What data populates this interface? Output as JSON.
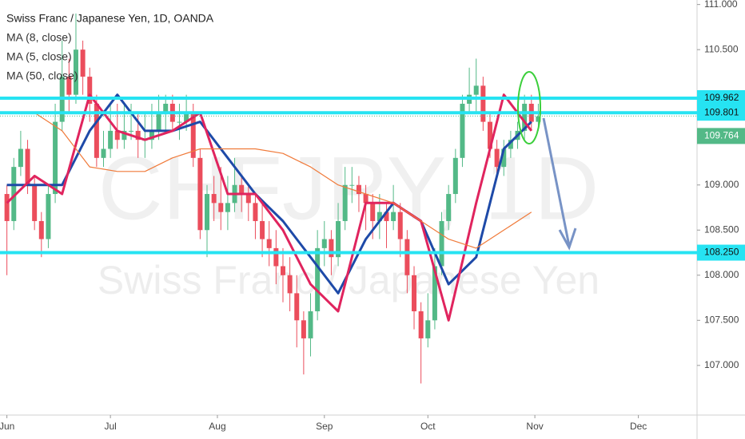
{
  "chart_data": {
    "type": "candlestick",
    "title": "Swiss Franc / Japanese Yen, 1D, OANDA",
    "watermark": "CHFJPY, 1D",
    "watermark_subtitle": "Swiss Franc / Japanese Yen",
    "up_color": "#53b987",
    "down_color": "#eb4d5c",
    "x": [
      0,
      2,
      4,
      6,
      8,
      10,
      12,
      14,
      16,
      18,
      20,
      22,
      24,
      26,
      28,
      30,
      32,
      34,
      36,
      38,
      40,
      42,
      44,
      46,
      48,
      50,
      52,
      54,
      56,
      58,
      60,
      62,
      64,
      66,
      68,
      70,
      72,
      74,
      76,
      78,
      80,
      82,
      84,
      86,
      88,
      90,
      92,
      94,
      96,
      98,
      100,
      102,
      104,
      106,
      108,
      110,
      112,
      114,
      116,
      118,
      120,
      122,
      124,
      126,
      128,
      130,
      132,
      134,
      136,
      138,
      140,
      142,
      144,
      146,
      148,
      150,
      152,
      154
    ],
    "candles": [
      [
        108.9,
        109.0,
        108.0,
        108.6
      ],
      [
        108.6,
        109.3,
        108.5,
        109.2
      ],
      [
        109.2,
        109.6,
        109.1,
        109.4
      ],
      [
        109.4,
        109.5,
        108.9,
        109.0
      ],
      [
        109.0,
        109.1,
        108.5,
        108.6
      ],
      [
        108.6,
        108.7,
        108.2,
        108.4
      ],
      [
        108.4,
        109.0,
        108.3,
        108.9
      ],
      [
        108.9,
        109.9,
        108.8,
        109.7
      ],
      [
        109.7,
        110.6,
        109.6,
        110.2
      ],
      [
        110.2,
        110.4,
        109.8,
        110.0
      ],
      [
        110.0,
        110.9,
        109.9,
        110.5
      ],
      [
        110.5,
        110.6,
        110.0,
        110.2
      ],
      [
        110.2,
        110.3,
        109.7,
        109.9
      ],
      [
        109.9,
        110.0,
        109.2,
        109.3
      ],
      [
        109.3,
        109.6,
        109.2,
        109.4
      ],
      [
        109.4,
        109.9,
        109.3,
        109.6
      ],
      [
        109.6,
        109.9,
        109.4,
        109.5
      ],
      [
        109.5,
        109.9,
        109.4,
        109.6
      ],
      [
        109.6,
        109.9,
        109.5,
        109.6
      ],
      [
        109.6,
        109.8,
        109.3,
        109.5
      ],
      [
        109.5,
        109.8,
        109.3,
        109.5
      ],
      [
        109.5,
        109.9,
        109.4,
        109.6
      ],
      [
        109.6,
        110.0,
        109.5,
        109.8
      ],
      [
        109.8,
        110.0,
        109.6,
        109.9
      ],
      [
        109.9,
        110.0,
        109.6,
        109.7
      ],
      [
        109.7,
        109.9,
        109.5,
        109.7
      ],
      [
        109.7,
        110.0,
        109.6,
        109.8
      ],
      [
        109.8,
        109.9,
        109.2,
        109.3
      ],
      [
        109.3,
        109.4,
        108.4,
        108.5
      ],
      [
        108.5,
        109.0,
        108.2,
        108.9
      ],
      [
        108.9,
        109.1,
        108.6,
        108.8
      ],
      [
        108.8,
        109.2,
        108.5,
        108.7
      ],
      [
        108.7,
        109.1,
        108.5,
        108.8
      ],
      [
        108.8,
        109.3,
        108.7,
        109.0
      ],
      [
        109.0,
        109.1,
        108.7,
        108.9
      ],
      [
        108.9,
        109.0,
        108.6,
        108.8
      ],
      [
        108.8,
        108.9,
        108.4,
        108.6
      ],
      [
        108.6,
        108.8,
        108.2,
        108.4
      ],
      [
        108.4,
        108.6,
        108.1,
        108.3
      ],
      [
        108.3,
        108.5,
        107.9,
        108.1
      ],
      [
        108.1,
        108.3,
        107.7,
        108.0
      ],
      [
        108.0,
        108.2,
        107.6,
        107.8
      ],
      [
        107.8,
        108.0,
        107.2,
        107.5
      ],
      [
        107.5,
        107.6,
        106.9,
        107.3
      ],
      [
        107.3,
        107.8,
        107.1,
        107.6
      ],
      [
        107.6,
        108.5,
        107.5,
        108.3
      ],
      [
        108.3,
        108.6,
        108.1,
        108.4
      ],
      [
        108.4,
        108.5,
        108.0,
        108.2
      ],
      [
        108.2,
        108.8,
        108.1,
        108.6
      ],
      [
        108.6,
        109.2,
        108.5,
        109.0
      ],
      [
        109.0,
        109.2,
        108.8,
        109.0
      ],
      [
        109.0,
        109.1,
        108.7,
        108.9
      ],
      [
        108.9,
        109.0,
        108.5,
        108.8
      ],
      [
        108.8,
        108.9,
        108.4,
        108.6
      ],
      [
        108.6,
        108.9,
        108.4,
        108.7
      ],
      [
        108.7,
        108.8,
        108.3,
        108.6
      ],
      [
        108.6,
        109.0,
        108.5,
        108.7
      ],
      [
        108.7,
        108.8,
        108.2,
        108.4
      ],
      [
        108.4,
        108.5,
        107.8,
        108.0
      ],
      [
        108.0,
        108.1,
        107.4,
        107.6
      ],
      [
        107.6,
        107.7,
        106.8,
        107.3
      ],
      [
        107.3,
        107.8,
        107.2,
        107.5
      ],
      [
        107.5,
        108.3,
        107.4,
        108.1
      ],
      [
        108.1,
        108.7,
        108.0,
        108.6
      ],
      [
        108.6,
        109.0,
        108.5,
        108.9
      ],
      [
        108.9,
        109.4,
        108.8,
        109.3
      ],
      [
        109.3,
        110.0,
        109.2,
        109.9
      ],
      [
        109.9,
        110.3,
        109.8,
        110.0
      ],
      [
        110.0,
        110.4,
        109.8,
        110.1
      ],
      [
        110.1,
        110.2,
        109.6,
        109.7
      ],
      [
        109.7,
        109.8,
        109.3,
        109.4
      ],
      [
        109.4,
        109.5,
        109.1,
        109.2
      ],
      [
        109.2,
        109.5,
        109.1,
        109.4
      ],
      [
        109.4,
        109.6,
        109.3,
        109.5
      ],
      [
        109.5,
        109.7,
        109.4,
        109.6
      ],
      [
        109.6,
        110.0,
        109.5,
        109.9
      ],
      [
        109.9,
        110.0,
        109.6,
        109.7
      ],
      [
        109.7,
        109.9,
        109.6,
        109.76
      ]
    ],
    "series": [
      {
        "name": "MA (8, close)",
        "color": "#1e4aa8",
        "x": [
          0,
          8,
          16,
          24,
          32,
          40,
          48,
          56,
          64,
          72,
          80,
          88,
          96,
          104,
          112,
          120,
          128,
          136,
          144,
          152
        ],
        "values": [
          109.0,
          109.0,
          109.0,
          109.6,
          110.0,
          109.6,
          109.6,
          109.7,
          109.3,
          108.9,
          108.6,
          108.2,
          107.8,
          108.4,
          108.8,
          108.6,
          107.9,
          108.2,
          109.4,
          109.7
        ]
      },
      {
        "name": "MA (5, close)",
        "color": "#e0245e",
        "x": [
          0,
          8,
          16,
          24,
          32,
          40,
          48,
          56,
          64,
          72,
          80,
          88,
          96,
          104,
          112,
          120,
          128,
          136,
          144,
          152
        ],
        "values": [
          108.8,
          109.1,
          108.9,
          110.0,
          109.6,
          109.5,
          109.6,
          109.8,
          108.9,
          108.9,
          108.5,
          107.9,
          107.6,
          108.8,
          108.8,
          108.6,
          107.5,
          108.8,
          110.0,
          109.6
        ]
      },
      {
        "name": "MA (50, close)",
        "color": "#f07a3a",
        "x": [
          8,
          16,
          24,
          32,
          40,
          48,
          56,
          64,
          72,
          80,
          88,
          96,
          104,
          112,
          120,
          128,
          136,
          144,
          152
        ],
        "values": [
          109.8,
          109.6,
          109.2,
          109.15,
          109.15,
          109.3,
          109.4,
          109.4,
          109.4,
          109.35,
          109.2,
          109.0,
          108.9,
          108.8,
          108.6,
          108.4,
          108.3,
          108.5,
          108.7
        ]
      }
    ],
    "levels": [
      109.962,
      109.801,
      {
        "value": 108.25,
        "label": "108.250"
      }
    ],
    "last_price": 109.764,
    "xlim": [
      -2,
      200
    ],
    "ylim": [
      106.45,
      111.05
    ],
    "xticks": [
      {
        "value": 0,
        "label": "Jun"
      },
      {
        "value": 30,
        "label": "Jul"
      },
      {
        "value": 61,
        "label": "Aug"
      },
      {
        "value": 92,
        "label": "Sep"
      },
      {
        "value": 122,
        "label": "Oct"
      },
      {
        "value": 153,
        "label": "Nov"
      },
      {
        "value": 183,
        "label": "Dec"
      }
    ],
    "yticks": [
      {
        "value": 111,
        "label": "111.000"
      },
      {
        "value": 110.5,
        "label": "110.500"
      },
      {
        "value": 109,
        "label": "109.000"
      },
      {
        "value": 108.5,
        "label": "108.500"
      },
      {
        "value": 108,
        "label": "108.000"
      },
      {
        "value": 107.5,
        "label": "107.500"
      },
      {
        "value": 107,
        "label": "107.000"
      }
    ]
  }
}
